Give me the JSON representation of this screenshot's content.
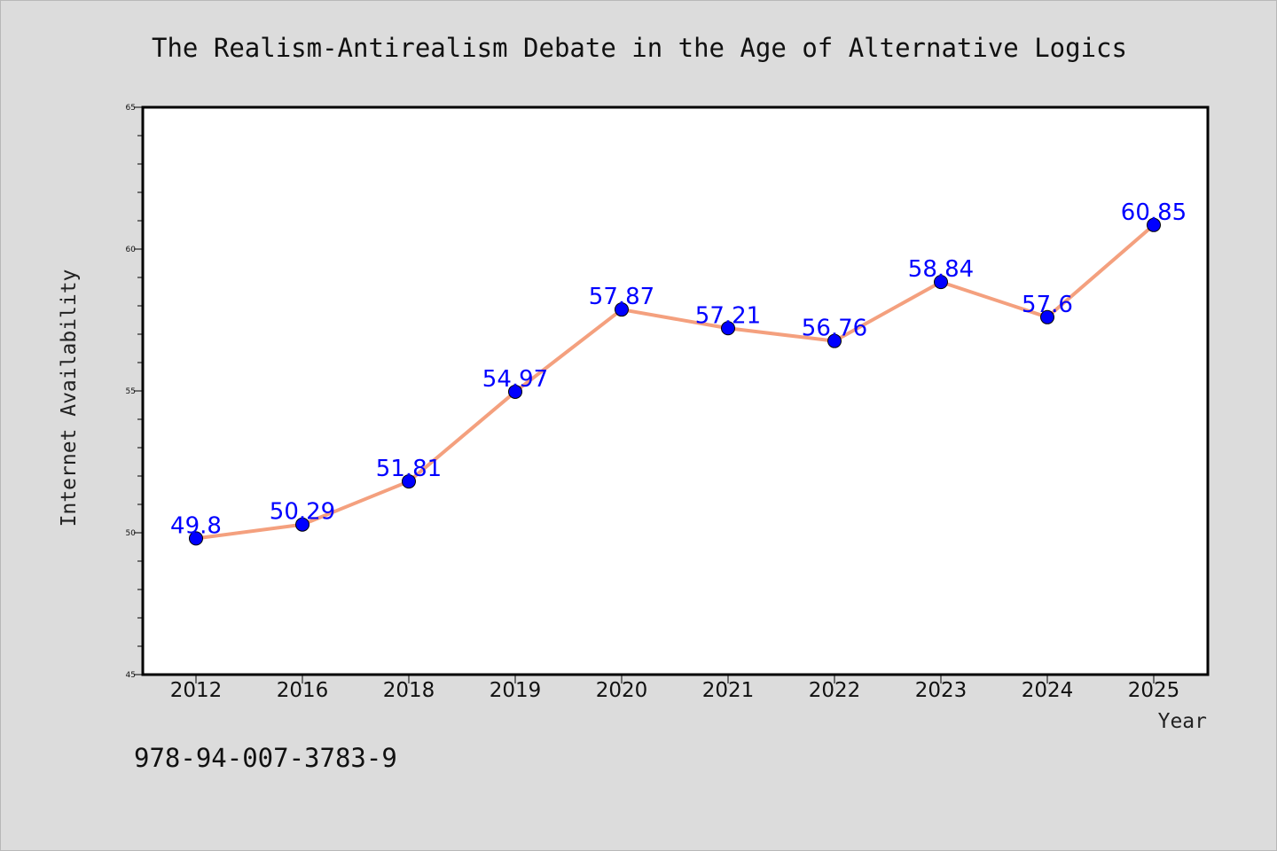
{
  "chart_data": {
    "type": "line",
    "title": "The Realism-Antirealism Debate in the Age of Alternative Logics",
    "xlabel": "Year",
    "ylabel": "Internet Availability",
    "categories": [
      "2012",
      "2016",
      "2018",
      "2019",
      "2020",
      "2021",
      "2022",
      "2023",
      "2024",
      "2025"
    ],
    "values": [
      49.8,
      50.29,
      51.81,
      54.97,
      57.87,
      57.21,
      56.76,
      58.84,
      57.6,
      60.85
    ],
    "data_labels": [
      "49.8",
      "50.29",
      "51.81",
      "54.97",
      "57.87",
      "57.21",
      "56.76",
      "58.84",
      "57.6",
      "60.85"
    ],
    "ylim": [
      45,
      65
    ],
    "yticks": [
      "45",
      "50",
      "55",
      "60",
      "65"
    ],
    "grid": false,
    "line_color": "#f4a07e",
    "marker_color": "#0000ff",
    "label_color": "#0000ff"
  },
  "footer": {
    "isbn": "978-94-007-3783-9"
  }
}
